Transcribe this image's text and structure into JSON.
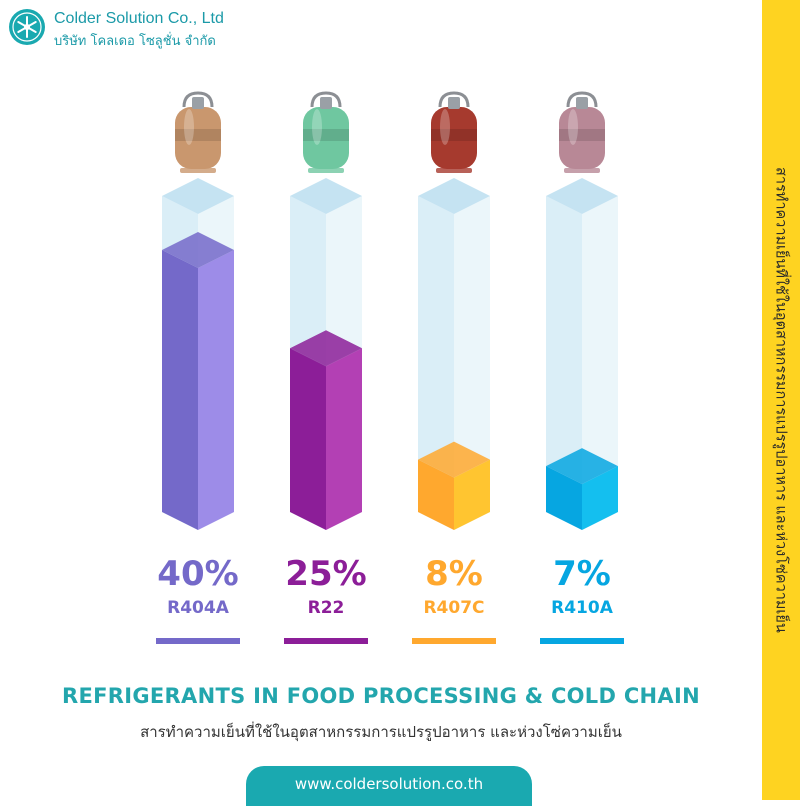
{
  "header": {
    "company_en": "Colder Solution Co., Ltd",
    "company_th": "บริษัท โคลเดอ โซลูชั่น จำกัด",
    "logo_icon": "snowflake-icon"
  },
  "side_banner": {
    "text": "สารทำความเย็นที่ใช้ในอุตสาหกรรมการแปรรูปอาหาร และห่วงโซ่ความเย็น"
  },
  "chart_data": {
    "type": "bar",
    "categories": [
      "R404A",
      "R22",
      "R407C",
      "R410A"
    ],
    "values": [
      40,
      25,
      8,
      7
    ],
    "value_labels": [
      "40%",
      "25%",
      "8%",
      "7%"
    ],
    "unit": "%",
    "ylim": [
      0,
      50
    ],
    "colors": [
      "#9d8ce8",
      "#b340b4",
      "#ffc530",
      "#14bfef"
    ],
    "colors_dark": [
      "#7469c9",
      "#8c1e98",
      "#ffa82e",
      "#06a6e1"
    ],
    "title": "REFRIGERANTS IN FOOD PROCESSING & COLD CHAIN",
    "subtitle": "สารทำความเย็นที่ใช้ในอุตสาหกรรมการแปรรูปอาหาร และห่วงโซ่ความเย็น",
    "xlabel": "",
    "ylabel": "",
    "grid": false,
    "legend": "none"
  },
  "cylinder_colors": [
    "#c9976e",
    "#6fc7a0",
    "#a63a2e",
    "#b88896"
  ],
  "website": "www.coldersolution.co.th"
}
